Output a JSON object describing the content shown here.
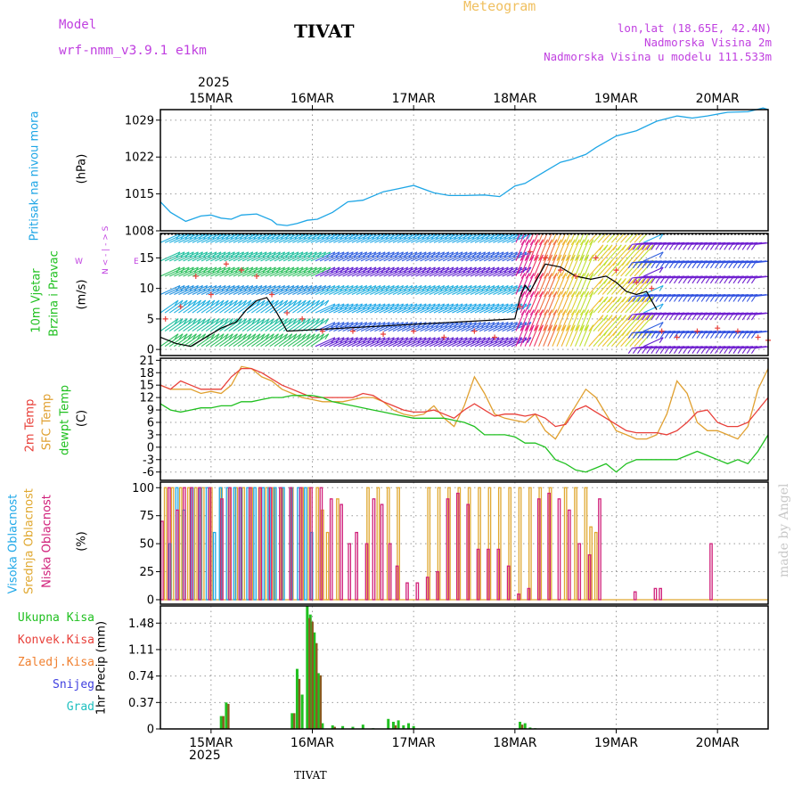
{
  "header": {
    "model_label": "Model",
    "model_name": "wrf-nmm_v3.9.1 e1km",
    "station": "TIVAT",
    "meteogram": "Meteogram",
    "lonlat": "lon,lat (18.65E, 42.4N)",
    "altitude": "Nadmorska Visina 2m",
    "model_altitude": "Nadmorska Visina u modelu 111.533m",
    "watermark": "made by Angel",
    "footer_station": "TIVAT"
  },
  "colors": {
    "pressure": "#1ea6e6",
    "temp2m": "#e8403a",
    "sfc_temp": "#e0a030",
    "dewpt": "#20c020",
    "high_cloud": "#20a8e8",
    "mid_cloud": "#e0a830",
    "low_cloud": "#d0207a",
    "total_precip": "#20c020",
    "conv_precip": "#e8403a",
    "frozen_precip": "#f08030",
    "snow": "#4040e0",
    "graupel": "#20c0c0",
    "title_purple": "#c040e0",
    "meteogram_orange": "#f0c060"
  },
  "chart_data": [
    {
      "id": "pressure",
      "type": "line",
      "ylabel": "(hPa)",
      "side_label": "Pritisak na nivou mora",
      "yticks": [
        1008,
        1015,
        1022,
        1029
      ],
      "ylim": [
        1008,
        1031
      ],
      "x_unit": "days since 15MAR00",
      "x": [
        -0.5,
        -0.4,
        -0.25,
        -0.1,
        0.0,
        0.1,
        0.2,
        0.3,
        0.45,
        0.6,
        0.65,
        0.75,
        0.85,
        0.95,
        1.05,
        1.2,
        1.35,
        1.5,
        1.7,
        1.85,
        2.0,
        2.2,
        2.35,
        2.5,
        2.7,
        2.85,
        3.0,
        3.1,
        3.3,
        3.45,
        3.55,
        3.7,
        3.8,
        4.0,
        4.2,
        4.4,
        4.6,
        4.75,
        4.9,
        5.1,
        5.3,
        5.45,
        5.5
      ],
      "values": [
        1013.5,
        1011.5,
        1009.8,
        1010.8,
        1011.0,
        1010.4,
        1010.2,
        1011.0,
        1011.2,
        1010.0,
        1009.2,
        1009.0,
        1009.4,
        1010.0,
        1010.2,
        1011.5,
        1013.5,
        1013.8,
        1015.4,
        1016.0,
        1016.6,
        1015.2,
        1014.7,
        1014.7,
        1014.8,
        1014.5,
        1016.5,
        1017.0,
        1019.3,
        1021.0,
        1021.5,
        1022.5,
        1023.8,
        1026.0,
        1027.0,
        1028.8,
        1029.8,
        1029.4,
        1029.8,
        1030.5,
        1030.6,
        1031.3,
        1031.0
      ]
    },
    {
      "id": "wind",
      "type": "line",
      "ylabel": "(m/s)",
      "side_label_1": "10m Vjetar",
      "side_label_2": "Brzina i Pravac",
      "direction_legend": [
        "N",
        "<",
        "-",
        "|",
        "-",
        ">",
        "S"
      ],
      "direction_legend_side": [
        "W",
        "E"
      ],
      "yticks": [
        0,
        5,
        10,
        15
      ],
      "ylim": [
        -1,
        19
      ],
      "x_unit": "days since 15MAR00",
      "speed_x": [
        -0.5,
        -0.35,
        -0.2,
        -0.05,
        0.1,
        0.25,
        0.35,
        0.45,
        0.55,
        0.65,
        0.75,
        3.0,
        3.05,
        3.1,
        3.15,
        3.2,
        3.3,
        3.45,
        3.6,
        3.75,
        3.9,
        4.0,
        4.1,
        4.2,
        4.3,
        4.35,
        4.4
      ],
      "speed_values": [
        2,
        1,
        0.5,
        2,
        3.5,
        4.5,
        6.5,
        8,
        8.5,
        6,
        3,
        5,
        8.5,
        10.5,
        9.5,
        11,
        14,
        13.5,
        12,
        11.5,
        12,
        11,
        9.5,
        9,
        9.5,
        8,
        6.5
      ],
      "gust_x": [
        -0.45,
        -0.3,
        -0.15,
        0.0,
        0.15,
        0.3,
        0.45,
        0.6,
        0.75,
        0.9,
        1.1,
        1.4,
        1.7,
        2.0,
        2.3,
        2.6,
        2.8,
        3.05,
        3.15,
        3.3,
        3.45,
        3.6,
        3.8,
        4.0,
        4.2,
        4.35,
        4.45,
        4.6,
        4.8,
        5.0,
        5.2,
        5.4,
        5.5
      ],
      "gust_values": [
        5,
        7,
        12,
        9,
        14,
        13,
        12,
        9,
        6,
        5,
        3,
        3,
        2.5,
        3,
        2,
        3,
        2,
        7,
        16,
        15,
        13,
        12,
        15,
        13,
        11,
        10,
        3,
        2,
        3,
        3.5,
        3,
        2,
        1.5
      ]
    },
    {
      "id": "temperature",
      "type": "line",
      "ylabel": "(C)",
      "series_labels": [
        "2m Temp",
        "SFC Temp",
        "dewpt Temp"
      ],
      "yticks": [
        -6,
        -3,
        0,
        3,
        6,
        9,
        12,
        15,
        18,
        21
      ],
      "ylim": [
        -8,
        21.5
      ],
      "x_unit": "days since 15MAR00",
      "x": [
        -0.5,
        -0.4,
        -0.3,
        -0.2,
        -0.1,
        0.0,
        0.1,
        0.2,
        0.3,
        0.4,
        0.5,
        0.6,
        0.7,
        0.8,
        0.9,
        1.0,
        1.1,
        1.2,
        1.3,
        1.4,
        1.5,
        1.6,
        1.7,
        1.8,
        1.9,
        2.0,
        2.1,
        2.2,
        2.3,
        2.4,
        2.5,
        2.6,
        2.7,
        2.8,
        2.9,
        3.0,
        3.1,
        3.2,
        3.3,
        3.4,
        3.5,
        3.6,
        3.7,
        3.8,
        3.9,
        4.0,
        4.1,
        4.2,
        4.3,
        4.4,
        4.5,
        4.6,
        4.7,
        4.8,
        4.9,
        5.0,
        5.1,
        5.2,
        5.3,
        5.4,
        5.5
      ],
      "series": [
        {
          "name": "2m Temp",
          "values": [
            15,
            14,
            16,
            15,
            14,
            14,
            14,
            17,
            19,
            19,
            18,
            16.5,
            15,
            14,
            13,
            12,
            12,
            12,
            12,
            12,
            13,
            12.5,
            11,
            10,
            9,
            8.5,
            8.5,
            9,
            8,
            7,
            9,
            10.5,
            9,
            7.5,
            8,
            8,
            7.5,
            8,
            7,
            5,
            5.5,
            9,
            10,
            8.5,
            7,
            5.5,
            4,
            3.5,
            3.5,
            3.5,
            3,
            4,
            6,
            8.5,
            9,
            6,
            5,
            5,
            6,
            9,
            12
          ]
        },
        {
          "name": "SFC Temp",
          "values": [
            15,
            14,
            14,
            14,
            13,
            13.5,
            13,
            15,
            19.5,
            19,
            17,
            16,
            14,
            13,
            12,
            11.5,
            11,
            11,
            11,
            11.5,
            12,
            12,
            11,
            9,
            8,
            7.5,
            8,
            10,
            7,
            5,
            10,
            17,
            13,
            8,
            7,
            6.5,
            6,
            8,
            4,
            2,
            6,
            10,
            14,
            12,
            8,
            4,
            3,
            2,
            2,
            3,
            8,
            16,
            13,
            6,
            4,
            4,
            3,
            2,
            5,
            14,
            19
          ]
        },
        {
          "name": "dewpt Temp",
          "values": [
            10.5,
            9,
            8.5,
            9,
            9.5,
            9.5,
            10,
            10,
            11,
            11,
            11.5,
            12,
            12,
            12.5,
            12.5,
            12.5,
            12,
            11,
            10.5,
            10,
            9.5,
            9,
            8.5,
            8,
            7.5,
            7,
            7,
            7,
            7,
            6.5,
            6,
            5,
            3,
            3,
            3,
            2.5,
            1,
            1,
            0,
            -3,
            -4,
            -5.5,
            -6,
            -5,
            -4,
            -6,
            -4,
            -3,
            -3,
            -3,
            -3,
            -3,
            -2,
            -1,
            -2,
            -3,
            -4,
            -3,
            -4,
            -1,
            3
          ]
        }
      ]
    },
    {
      "id": "clouds",
      "type": "bar",
      "ylabel": "(%)",
      "series_labels": [
        "Visoka Oblacnost",
        "Srednja Oblacnost",
        "Niska Oblacnost"
      ],
      "yticks": [
        0,
        25,
        50,
        75,
        100
      ],
      "ylim": [
        -4,
        105
      ],
      "x_unit": "days since 15MAR00",
      "high_x": [
        -0.42,
        -0.35,
        -0.28,
        -0.2,
        -0.12,
        -0.05,
        0.02,
        0.08,
        0.15,
        0.22,
        0.28,
        0.35,
        0.42,
        0.5,
        0.56,
        0.62,
        0.7,
        0.78,
        0.85,
        0.92,
        0.98
      ],
      "high_values": [
        50,
        100,
        80,
        100,
        100,
        100,
        60,
        100,
        100,
        100,
        100,
        100,
        100,
        100,
        100,
        100,
        100,
        100,
        100,
        100,
        60
      ],
      "mid_x": [
        -0.45,
        -0.38,
        -0.3,
        -0.22,
        -0.15,
        -0.08,
        0.0,
        0.1,
        0.18,
        0.25,
        0.32,
        0.4,
        0.48,
        0.55,
        0.62,
        0.7,
        0.8,
        0.9,
        0.97,
        1.05,
        1.1,
        1.15,
        1.25,
        1.55,
        1.65,
        1.75,
        1.85,
        2.15,
        2.25,
        2.35,
        2.45,
        2.55,
        2.65,
        2.75,
        2.85,
        2.95,
        3.05,
        3.15,
        3.25,
        3.35,
        3.5,
        3.6,
        3.7,
        3.75,
        3.8
      ],
      "mid_values": [
        100,
        100,
        100,
        100,
        100,
        100,
        100,
        100,
        100,
        100,
        100,
        100,
        100,
        100,
        100,
        100,
        100,
        100,
        100,
        100,
        80,
        60,
        90,
        100,
        100,
        100,
        100,
        100,
        100,
        100,
        100,
        100,
        100,
        100,
        100,
        100,
        100,
        100,
        100,
        100,
        100,
        100,
        100,
        65,
        60
      ],
      "low_x": [
        -0.47,
        -0.4,
        -0.32,
        -0.25,
        -0.18,
        -0.1,
        0.0,
        0.12,
        0.2,
        0.3,
        0.4,
        0.5,
        0.6,
        0.7,
        0.8,
        0.9,
        1.0,
        1.1,
        1.2,
        1.3,
        1.38,
        1.45,
        1.55,
        1.62,
        1.7,
        1.78,
        1.85,
        1.95,
        2.05,
        2.15,
        2.25,
        2.35,
        2.45,
        2.55,
        2.65,
        2.75,
        2.85,
        2.95,
        3.05,
        3.15,
        3.25,
        3.35,
        3.45,
        3.55,
        3.65,
        3.75,
        3.85,
        4.2,
        4.4,
        4.45,
        4.95
      ],
      "low_values": [
        70,
        100,
        80,
        100,
        100,
        100,
        100,
        90,
        100,
        100,
        100,
        100,
        100,
        100,
        100,
        100,
        100,
        100,
        90,
        85,
        50,
        60,
        50,
        90,
        85,
        50,
        30,
        15,
        15,
        20,
        25,
        90,
        95,
        85,
        45,
        45,
        45,
        30,
        5,
        10,
        90,
        95,
        90,
        80,
        50,
        40,
        90,
        7,
        10,
        10,
        50
      ]
    },
    {
      "id": "precip",
      "type": "bar",
      "ylabel": "1hr Precip (mm)",
      "series_labels": [
        "Ukupna Kisa",
        "Konvek.Kisa",
        "Zaledj.Kisa",
        "Snijeg",
        "Grad"
      ],
      "yticks": [
        0,
        0.37,
        0.74,
        1.11,
        1.48
      ],
      "ylim": [
        0,
        1.72
      ],
      "x_unit": "days since 15MAR00",
      "total_x": [
        0.1,
        0.15,
        0.8,
        0.85,
        0.9,
        0.95,
        0.98,
        1.02,
        1.06,
        1.1,
        1.2,
        1.3,
        1.4,
        1.5,
        1.6,
        1.75,
        1.8,
        1.85,
        1.9,
        1.95,
        2.0,
        3.05,
        3.1,
        3.15,
        3.2
      ],
      "total_values": [
        0.18,
        0.37,
        0.22,
        0.84,
        0.48,
        1.72,
        1.6,
        1.35,
        0.78,
        0.08,
        0.05,
        0.04,
        0.03,
        0.06,
        0.01,
        0.14,
        0.1,
        0.12,
        0.05,
        0.08,
        0.04,
        0.1,
        0.08,
        0.02,
        0.01
      ],
      "conv_x": [
        0.1,
        0.15,
        0.8,
        0.85,
        0.95,
        0.98,
        1.02,
        1.06,
        1.2,
        1.8,
        3.05
      ],
      "conv_values": [
        0.18,
        0.35,
        0.22,
        0.7,
        1.55,
        1.5,
        1.2,
        0.75,
        0.03,
        0.05,
        0.06
      ]
    }
  ],
  "x_axis": {
    "year_top": "2025",
    "year_bottom": "2025",
    "day_labels": [
      "15MAR",
      "16MAR",
      "17MAR",
      "18MAR",
      "19MAR",
      "20MAR"
    ]
  }
}
